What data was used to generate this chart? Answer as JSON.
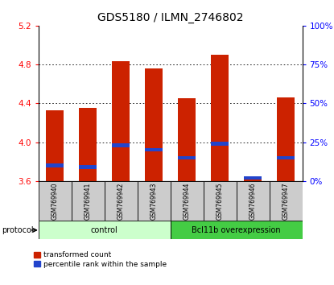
{
  "title": "GDS5180 / ILMN_2746802",
  "samples": [
    "GSM769940",
    "GSM769941",
    "GSM769942",
    "GSM769943",
    "GSM769944",
    "GSM769945",
    "GSM769946",
    "GSM769947"
  ],
  "transformed_counts": [
    4.33,
    4.35,
    4.83,
    4.76,
    4.45,
    4.9,
    3.63,
    4.46
  ],
  "percentile_ranks": [
    10,
    9,
    23,
    20,
    15,
    24,
    2,
    15
  ],
  "ymin": 3.6,
  "ymax": 5.2,
  "yticks_left": [
    3.6,
    4.0,
    4.4,
    4.8,
    5.2
  ],
  "yticks_right": [
    0,
    25,
    50,
    75,
    100
  ],
  "bar_color": "#cc2200",
  "blue_color": "#2244cc",
  "ctrl_color": "#ccffcc",
  "over_color": "#44cc44",
  "gray_color": "#cccccc",
  "title_fontsize": 10,
  "tick_fontsize": 7.5,
  "sample_fontsize": 5.5,
  "group_fontsize": 7,
  "legend_fontsize": 6.5,
  "protocol_fontsize": 7,
  "legend_items": [
    {
      "label": "transformed count",
      "color": "#cc2200"
    },
    {
      "label": "percentile rank within the sample",
      "color": "#2244cc"
    }
  ]
}
